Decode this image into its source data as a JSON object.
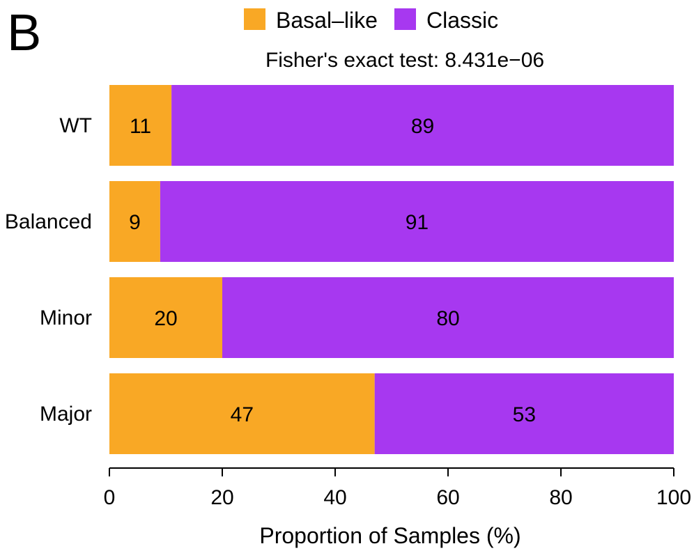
{
  "panel_label": "B",
  "chart_data": {
    "type": "bar",
    "orientation": "horizontal",
    "stacked": true,
    "title": "",
    "subtitle": "Fisher's exact test: 8.431e−06",
    "categories": [
      "WT",
      "Balanced",
      "Minor",
      "Major"
    ],
    "series": [
      {
        "name": "Basal–like",
        "color": "#f9a825",
        "values": [
          11,
          9,
          20,
          47
        ]
      },
      {
        "name": "Classic",
        "color": "#a738f0",
        "values": [
          89,
          91,
          80,
          53
        ]
      }
    ],
    "xlabel": "Proportion of Samples (%)",
    "ylabel": "",
    "xlim": [
      0,
      100
    ],
    "xticks": [
      0,
      20,
      40,
      60,
      80,
      100
    ],
    "grid": false,
    "legend_position": "top"
  }
}
